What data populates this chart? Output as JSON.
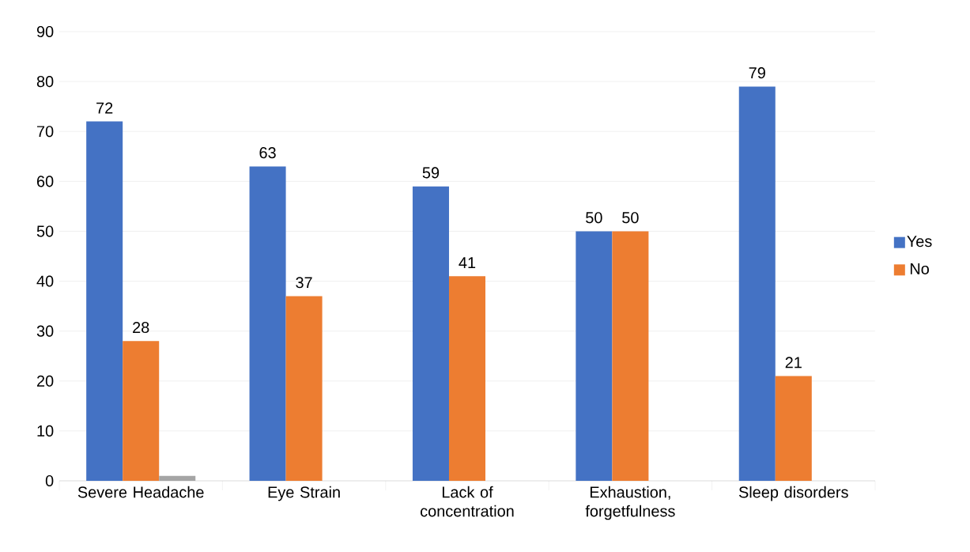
{
  "chart_data": {
    "type": "bar",
    "categories": [
      "Severe Headache",
      "Eye Strain",
      "Lack of concentration",
      "Exhaustion, forgetfulness",
      "Sleep disorders"
    ],
    "series": [
      {
        "name": "Yes",
        "color": "#4472c4",
        "values": [
          72,
          63,
          59,
          50,
          79
        ],
        "value_labels": [
          "72",
          "63",
          "59",
          "50",
          "79"
        ]
      },
      {
        "name": "No",
        "color": "#ed7d31",
        "values": [
          28,
          37,
          41,
          50,
          21
        ],
        "value_labels": [
          "28",
          "37",
          "41",
          "50",
          "21"
        ]
      },
      {
        "color": "#a5a5a5",
        "values": [
          1,
          null,
          null,
          null,
          null
        ]
      }
    ],
    "ylim": [
      0,
      90
    ],
    "yticks": [
      0,
      10,
      20,
      30,
      40,
      50,
      60,
      70,
      80,
      90
    ],
    "grid": "y",
    "legend": "right"
  }
}
